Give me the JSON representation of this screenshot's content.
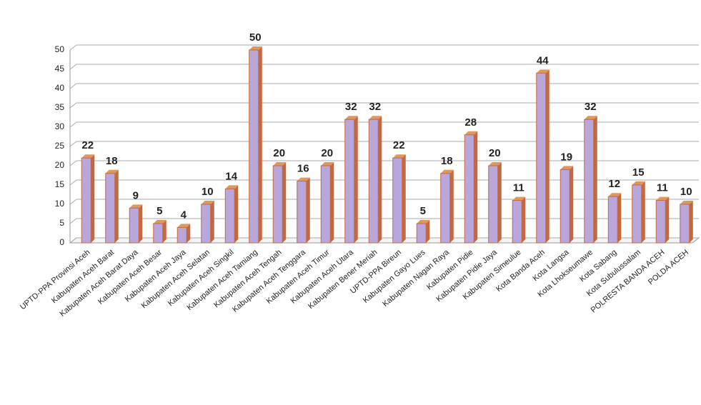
{
  "chart_data": {
    "type": "bar3d",
    "categories": [
      "UPTD-PPA Provinsi Aceh",
      "Kabupaten Aceh Barat",
      "Kabupaten Aceh Barat Daya",
      "Kabupaten Aceh Besar",
      "Kabupaten Aceh Jaya",
      "Kabupaten Aceh Selatan",
      "Kabupaten Aceh Singkil",
      "Kabupaten Aceh Tamiang",
      "Kabupaten Aceh Tengah",
      "Kabupaten Aceh Tenggara",
      "Kabupaten Aceh Timur",
      "Kabupaten Aceh Utara",
      "Kabupaten Bener Meriah",
      "UPTD-PPA Bireun",
      "Kabupaten Gayo Lues",
      "Kabupaten Nagan Raya",
      "Kabupaten Pidie",
      "Kabupaten Pidie Jaya",
      "Kabupaten Simeulue",
      "Kota Banda Aceh",
      "Kota Langsa",
      "Kota Lhokseumawe",
      "Kota Sabang",
      "Kota Subulussalam",
      "POLRESTA BANDA ACEH",
      "POLDA ACEH"
    ],
    "values": [
      22,
      18,
      9,
      5,
      4,
      10,
      14,
      50,
      20,
      16,
      20,
      32,
      32,
      22,
      5,
      18,
      28,
      20,
      11,
      44,
      19,
      32,
      12,
      15,
      11,
      10
    ],
    "color": "#b9a6da",
    "ylim": [
      0,
      50
    ],
    "yticks": [
      0,
      5,
      10,
      15,
      20,
      25,
      30,
      35,
      40,
      45,
      50
    ],
    "grid": true
  }
}
